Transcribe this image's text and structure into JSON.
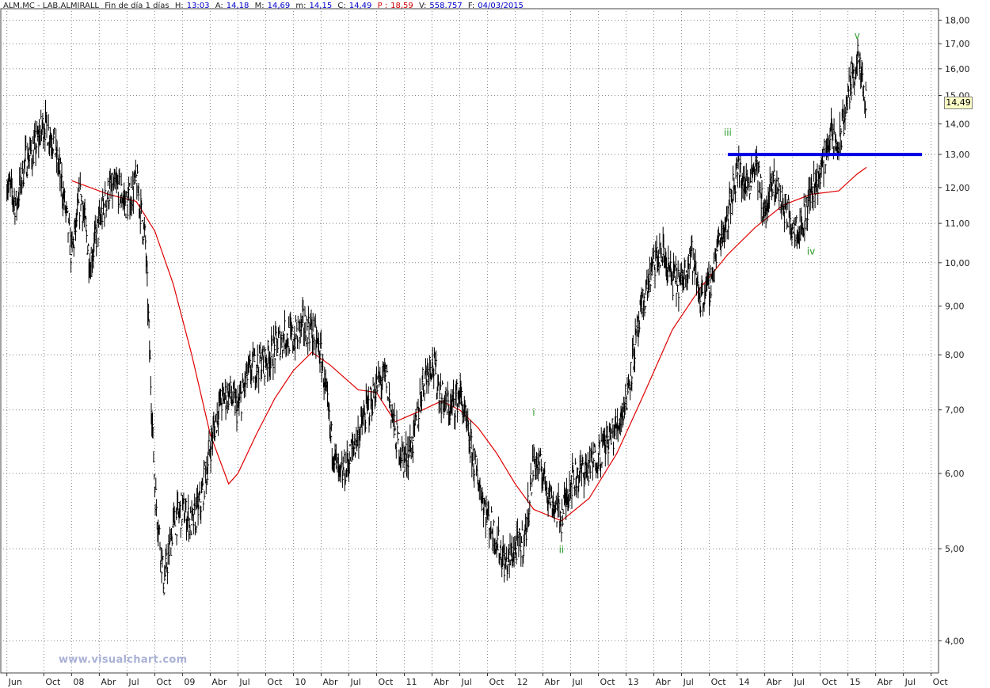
{
  "header": {
    "symbol": "ALM.MC - LAB.ALMIRALL",
    "period": "Fin de día 1 días",
    "high_label": "H:",
    "high_value": "13:03",
    "open_label": "A:",
    "open_value": "14,18",
    "max_label": "M:",
    "max_value": "14,69",
    "min_label": "m:",
    "min_value": "14,15",
    "close_label": "C:",
    "close_value": "14,49",
    "p_label": "P :",
    "p_value": "18,59",
    "vol_label": "V:",
    "vol_value": "558.757",
    "date_label": "F:",
    "date_value": "04/03/2015"
  },
  "watermark": "www.visualchart.com",
  "last_price_label": "14,49",
  "colors": {
    "price": "#000000",
    "moving_average": "#e00000",
    "resistance_line": "#0000e6",
    "wave_labels": "#2a9a2a",
    "grid": "#888888",
    "header_values": "#0000c8"
  },
  "chart_data": {
    "type": "line",
    "y_scale": "log",
    "ylim": [
      3.7,
      18.4
    ],
    "y_ticks": [
      "18,00",
      "17,00",
      "16,00",
      "15,00",
      "14,00",
      "13,00",
      "12,00",
      "11,00",
      "10,00",
      "9,00",
      "8,00",
      "7,00",
      "6,00",
      "5,00",
      "4,00"
    ],
    "y_tick_values": [
      18,
      17,
      16,
      15,
      14,
      13,
      12,
      11,
      10,
      9,
      8,
      7,
      6,
      5,
      4
    ],
    "x_ticks": [
      "Jun",
      "Oct",
      "08",
      "Abr",
      "Jul",
      "Oct",
      "09",
      "Abr",
      "Jul",
      "Oct",
      "10",
      "Abr",
      "Jul",
      "Oct",
      "11",
      "Abr",
      "Jul",
      "Oct",
      "12",
      "Abr",
      "Jul",
      "Oct",
      "13",
      "Abr",
      "Jul",
      "Oct",
      "14",
      "Abr",
      "Jul",
      "Oct",
      "15",
      "Abr",
      "Jul",
      "Oct"
    ],
    "x_tick_dates": [
      "2007-06",
      "2007-10",
      "2008-01",
      "2008-04",
      "2008-07",
      "2008-10",
      "2009-01",
      "2009-04",
      "2009-07",
      "2009-10",
      "2010-01",
      "2010-04",
      "2010-07",
      "2010-10",
      "2011-01",
      "2011-04",
      "2011-07",
      "2011-10",
      "2012-01",
      "2012-04",
      "2012-07",
      "2012-10",
      "2013-01",
      "2013-04",
      "2013-07",
      "2013-10",
      "2014-01",
      "2014-04",
      "2014-07",
      "2014-10",
      "2015-01",
      "2015-04",
      "2015-07",
      "2015-10"
    ],
    "grid": true,
    "series": [
      {
        "kind": "price",
        "points": [
          [
            "2007-06",
            12.2
          ],
          [
            "2007-07",
            11.5
          ],
          [
            "2007-08",
            12.8
          ],
          [
            "2007-09",
            13.2
          ],
          [
            "2007-10",
            14.0
          ],
          [
            "2007-11",
            13.5
          ],
          [
            "2007-12",
            12.0
          ],
          [
            "2008-01",
            10.2
          ],
          [
            "2008-02",
            11.8
          ],
          [
            "2008-03",
            10.0
          ],
          [
            "2008-04",
            11.0
          ],
          [
            "2008-05",
            11.9
          ],
          [
            "2008-06",
            12.0
          ],
          [
            "2008-07",
            11.5
          ],
          [
            "2008-08",
            12.2
          ],
          [
            "2008-09",
            10.5
          ],
          [
            "2008-10",
            5.8
          ],
          [
            "2008-11",
            4.6
          ],
          [
            "2008-12",
            5.3
          ],
          [
            "2009-01",
            5.5
          ],
          [
            "2009-02",
            5.3
          ],
          [
            "2009-03",
            5.6
          ],
          [
            "2009-04",
            6.4
          ],
          [
            "2009-05",
            7.1
          ],
          [
            "2009-06",
            7.3
          ],
          [
            "2009-07",
            7.0
          ],
          [
            "2009-08",
            7.6
          ],
          [
            "2009-09",
            7.8
          ],
          [
            "2009-10",
            7.9
          ],
          [
            "2009-11",
            8.1
          ],
          [
            "2009-12",
            8.4
          ],
          [
            "2010-01",
            8.3
          ],
          [
            "2010-02",
            8.6
          ],
          [
            "2010-03",
            8.5
          ],
          [
            "2010-04",
            8.0
          ],
          [
            "2010-05",
            6.6
          ],
          [
            "2010-06",
            5.9
          ],
          [
            "2010-07",
            6.2
          ],
          [
            "2010-08",
            6.6
          ],
          [
            "2010-09",
            7.0
          ],
          [
            "2010-10",
            7.4
          ],
          [
            "2010-11",
            7.6
          ],
          [
            "2010-12",
            6.6
          ],
          [
            "2011-01",
            6.2
          ],
          [
            "2011-02",
            6.5
          ],
          [
            "2011-03",
            7.5
          ],
          [
            "2011-04",
            7.9
          ],
          [
            "2011-05",
            7.2
          ],
          [
            "2011-06",
            7.0
          ],
          [
            "2011-07",
            7.3
          ],
          [
            "2011-08",
            6.5
          ],
          [
            "2011-09",
            5.9
          ],
          [
            "2011-10",
            5.4
          ],
          [
            "2011-11",
            5.1
          ],
          [
            "2011-12",
            4.8
          ],
          [
            "2012-01",
            5.0
          ],
          [
            "2012-02",
            5.1
          ],
          [
            "2012-03",
            6.2
          ],
          [
            "2012-04",
            6.0
          ],
          [
            "2012-05",
            5.6
          ],
          [
            "2012-06",
            5.4
          ],
          [
            "2012-07",
            5.9
          ],
          [
            "2012-08",
            6.0
          ],
          [
            "2012-09",
            6.1
          ],
          [
            "2012-10",
            6.3
          ],
          [
            "2012-11",
            6.5
          ],
          [
            "2012-12",
            6.7
          ],
          [
            "2013-01",
            7.2
          ],
          [
            "2013-02",
            8.2
          ],
          [
            "2013-03",
            9.2
          ],
          [
            "2013-04",
            10.0
          ],
          [
            "2013-05",
            10.2
          ],
          [
            "2013-06",
            9.6
          ],
          [
            "2013-07",
            9.5
          ],
          [
            "2013-08",
            10.3
          ],
          [
            "2013-09",
            9.2
          ],
          [
            "2013-10",
            9.4
          ],
          [
            "2013-11",
            10.5
          ],
          [
            "2013-12",
            11.2
          ],
          [
            "2014-01",
            12.6
          ],
          [
            "2014-02",
            12.0
          ],
          [
            "2014-03",
            12.8
          ],
          [
            "2014-04",
            11.2
          ],
          [
            "2014-05",
            12.2
          ],
          [
            "2014-06",
            11.5
          ],
          [
            "2014-07",
            11.0
          ],
          [
            "2014-08",
            10.9
          ],
          [
            "2014-09",
            11.9
          ],
          [
            "2014-10",
            12.4
          ],
          [
            "2014-11",
            13.6
          ],
          [
            "2014-12",
            13.2
          ],
          [
            "2015-01",
            15.0
          ],
          [
            "2015-02",
            16.4
          ],
          [
            "2015-03",
            14.5
          ]
        ]
      },
      {
        "kind": "moving_average",
        "points": [
          [
            "2008-01",
            12.2
          ],
          [
            "2008-05",
            11.8
          ],
          [
            "2008-08",
            11.6
          ],
          [
            "2008-10",
            10.8
          ],
          [
            "2008-12",
            9.5
          ],
          [
            "2009-02",
            8.0
          ],
          [
            "2009-04",
            6.6
          ],
          [
            "2009-06",
            5.85
          ],
          [
            "2009-07",
            6.0
          ],
          [
            "2009-09",
            6.6
          ],
          [
            "2009-11",
            7.2
          ],
          [
            "2010-01",
            7.7
          ],
          [
            "2010-03",
            8.05
          ],
          [
            "2010-05",
            7.8
          ],
          [
            "2010-08",
            7.35
          ],
          [
            "2010-10",
            7.3
          ],
          [
            "2010-12",
            6.8
          ],
          [
            "2011-03",
            7.0
          ],
          [
            "2011-05",
            7.15
          ],
          [
            "2011-07",
            7.0
          ],
          [
            "2011-09",
            6.7
          ],
          [
            "2011-11",
            6.3
          ],
          [
            "2012-01",
            5.85
          ],
          [
            "2012-03",
            5.5
          ],
          [
            "2012-06",
            5.35
          ],
          [
            "2012-09",
            5.65
          ],
          [
            "2012-12",
            6.3
          ],
          [
            "2013-03",
            7.3
          ],
          [
            "2013-06",
            8.5
          ],
          [
            "2013-09",
            9.4
          ],
          [
            "2013-12",
            10.2
          ],
          [
            "2014-03",
            10.9
          ],
          [
            "2014-06",
            11.5
          ],
          [
            "2014-09",
            11.8
          ],
          [
            "2014-12",
            11.9
          ],
          [
            "2015-02",
            12.4
          ],
          [
            "2015-03",
            12.6
          ]
        ]
      },
      {
        "kind": "resistance_line",
        "points": [
          [
            "2013-12",
            13.0
          ],
          [
            "2015-09",
            13.0
          ]
        ]
      }
    ],
    "annotations": [
      {
        "text": "i",
        "date": "2012-03",
        "value": 6.9
      },
      {
        "text": "ii",
        "date": "2012-06",
        "value": 4.95
      },
      {
        "text": "iii",
        "date": "2013-12",
        "value": 13.6
      },
      {
        "text": "iv",
        "date": "2014-09",
        "value": 10.2
      },
      {
        "text": "v",
        "date": "2015-02",
        "value": 17.2
      }
    ]
  }
}
